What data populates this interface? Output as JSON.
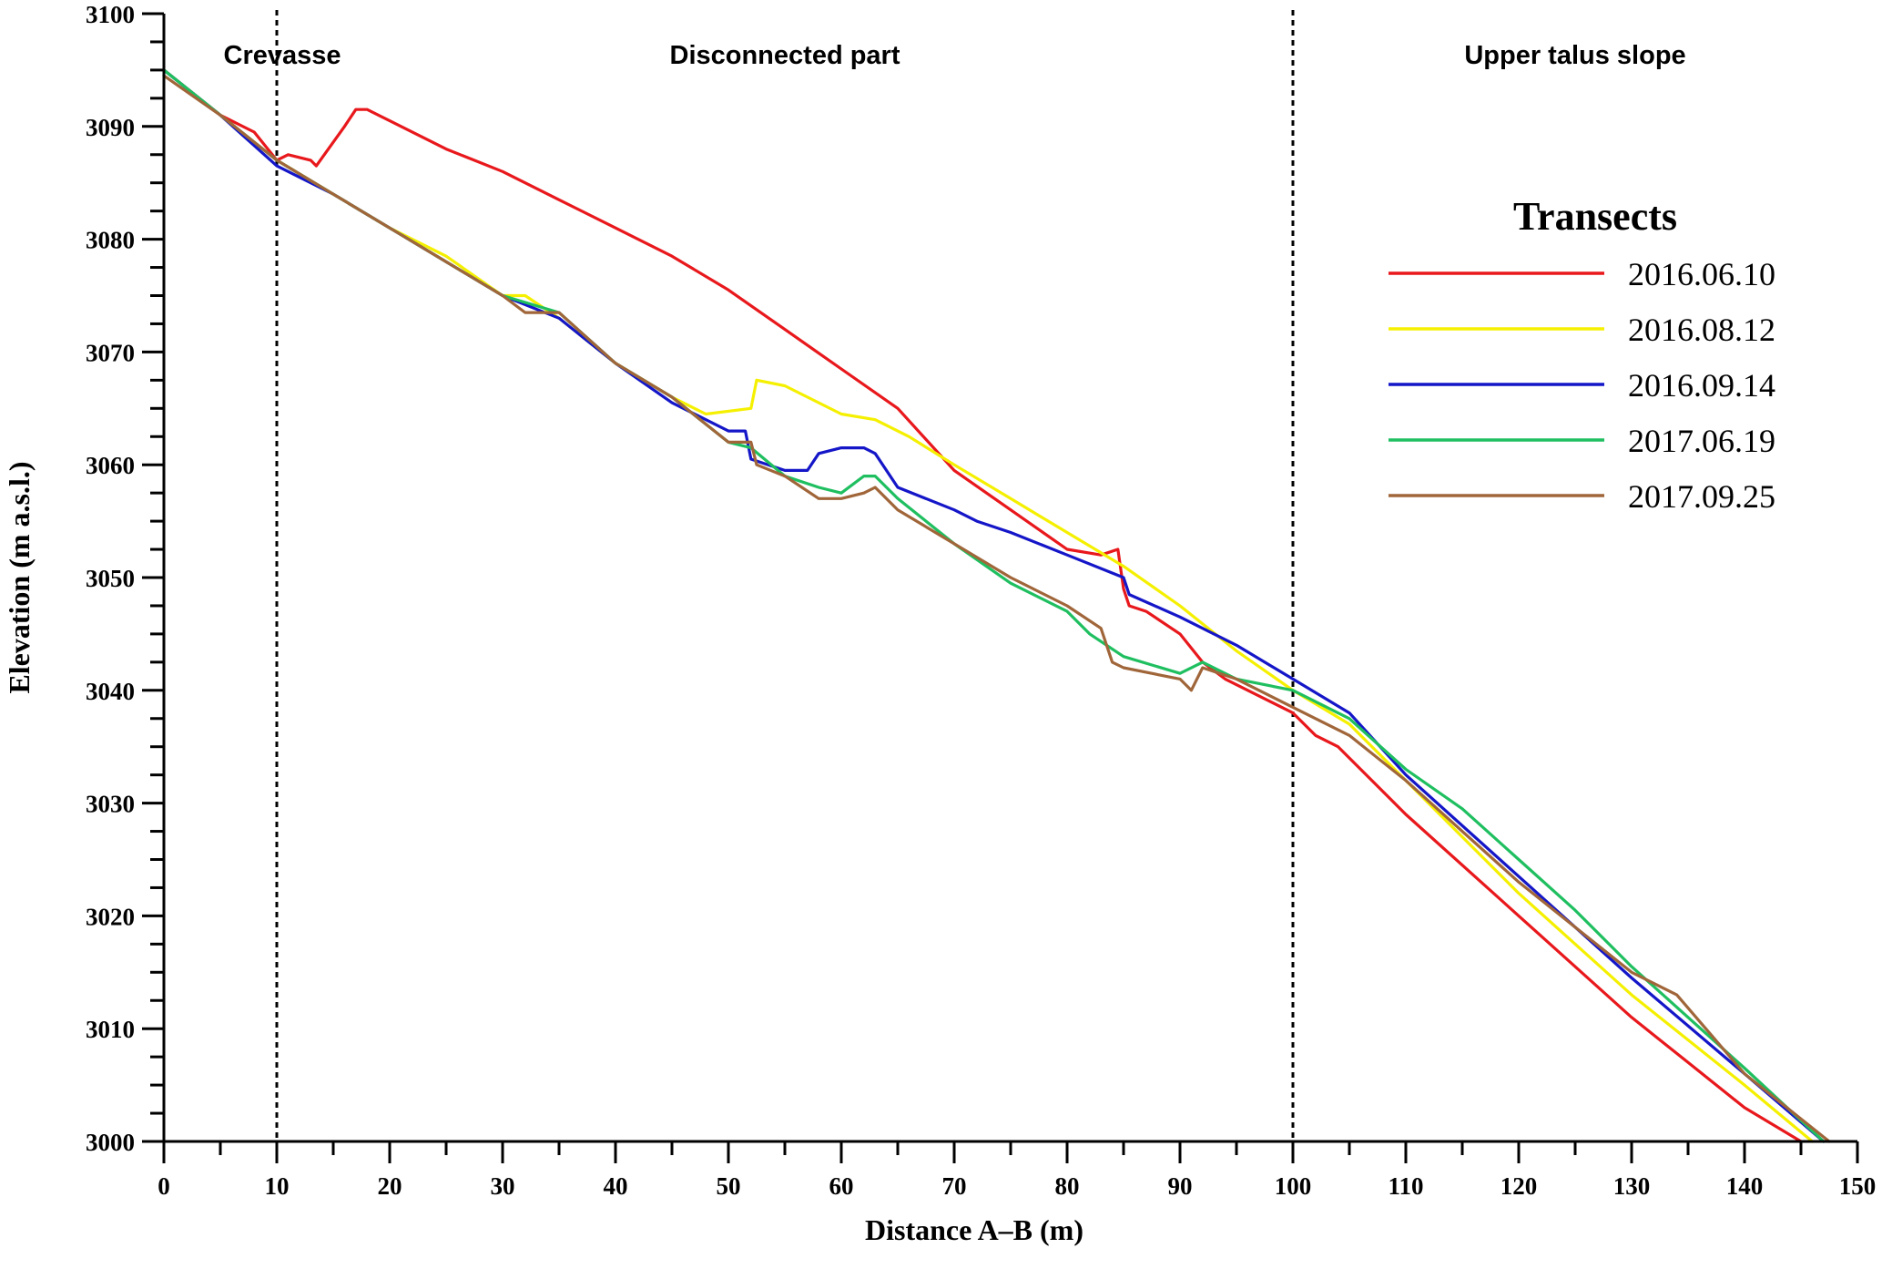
{
  "chart_data": {
    "type": "line",
    "xlabel": "Distance A–B (m)",
    "ylabel": "Elevation (m a.s.l.)",
    "xlim": [
      0,
      150
    ],
    "ylim": [
      3000,
      3100
    ],
    "x_ticks": [
      0,
      10,
      20,
      30,
      40,
      50,
      60,
      70,
      80,
      90,
      100,
      110,
      120,
      130,
      140,
      150
    ],
    "y_ticks": [
      3000,
      3010,
      3020,
      3030,
      3040,
      3050,
      3060,
      3070,
      3080,
      3090,
      3100
    ],
    "x_tick_labels": [
      "0",
      "10",
      "20",
      "30",
      "40",
      "50",
      "60",
      "70",
      "80",
      "90",
      "100",
      "110",
      "120",
      "130",
      "140",
      "150"
    ],
    "y_tick_labels": [
      "3000",
      "3010",
      "3020",
      "3030",
      "3040",
      "3050",
      "3060",
      "3070",
      "3080",
      "3090",
      "3100"
    ],
    "grid": false,
    "legend": {
      "title": "Transects",
      "position": "right"
    },
    "zones": [
      {
        "label": "Crevasse",
        "x": 0
      },
      {
        "label": "Disconnected part",
        "x": 10
      },
      {
        "label": "Upper talus slope",
        "x": 100
      }
    ],
    "dividers": [
      10,
      100
    ],
    "series": [
      {
        "name": "2016.06.10",
        "color": "#e8181c",
        "x": [
          0,
          5,
          8,
          10,
          11,
          13,
          13.5,
          16,
          17,
          18,
          20,
          25,
          30,
          35,
          40,
          45,
          50,
          55,
          60,
          65,
          70,
          75,
          80,
          83,
          84.5,
          85,
          85.5,
          87,
          90,
          92,
          94,
          98,
          100,
          102,
          104,
          110,
          120,
          130,
          135,
          140,
          145
        ],
        "values": [
          3095,
          3091,
          3089.5,
          3087,
          3087.5,
          3087,
          3086.5,
          3090,
          3091.5,
          3091.5,
          3090.5,
          3088,
          3086,
          3083.5,
          3081,
          3078.5,
          3075.5,
          3072,
          3068.5,
          3065,
          3059.5,
          3056,
          3052.5,
          3052,
          3052.5,
          3049,
          3047.5,
          3047,
          3045,
          3042.5,
          3041,
          3039,
          3038,
          3036,
          3035,
          3029,
          3020,
          3011,
          3007,
          3003,
          3000
        ]
      },
      {
        "name": "2016.08.12",
        "color": "#f5f000",
        "x": [
          0,
          5,
          10,
          15,
          20,
          25,
          30,
          32,
          35,
          40,
          45,
          48,
          52,
          52.5,
          55,
          60,
          63,
          66,
          70,
          75,
          80,
          85,
          90,
          95,
          100,
          105,
          110,
          120,
          130,
          140,
          146
        ],
        "values": [
          3095,
          3091,
          3087,
          3084,
          3081,
          3078.5,
          3075,
          3075,
          3073,
          3069,
          3066,
          3064.5,
          3065,
          3067.5,
          3067,
          3064.5,
          3064,
          3062.5,
          3060,
          3057,
          3054,
          3051,
          3047.5,
          3043.5,
          3040,
          3037,
          3032,
          3022,
          3013,
          3005,
          3000
        ]
      },
      {
        "name": "2016.09.14",
        "color": "#1416c8",
        "x": [
          0,
          5,
          10,
          15,
          20,
          25,
          30,
          35,
          40,
          45,
          50,
          51.5,
          52,
          55,
          57,
          58,
          60,
          61,
          62,
          63,
          65,
          70,
          72,
          75,
          80,
          85,
          85.5,
          90,
          95,
          100,
          105,
          110,
          120,
          130,
          140,
          147
        ],
        "values": [
          3095,
          3091,
          3086.5,
          3084,
          3081,
          3078,
          3075,
          3073,
          3069,
          3065.5,
          3063,
          3063,
          3060.5,
          3059.5,
          3059.5,
          3061,
          3061.5,
          3061.5,
          3061.5,
          3061,
          3058,
          3056,
          3055,
          3054,
          3052,
          3050,
          3048.5,
          3046.5,
          3044,
          3041,
          3038,
          3032.5,
          3023.5,
          3014.5,
          3006,
          3000
        ]
      },
      {
        "name": "2017.06.19",
        "color": "#1fbf60",
        "x": [
          0,
          5,
          10,
          15,
          20,
          25,
          30,
          35,
          40,
          45,
          50,
          52,
          55,
          58,
          60,
          62,
          63,
          65,
          70,
          75,
          80,
          82,
          85,
          90,
          92,
          95,
          100,
          105,
          110,
          115,
          120,
          125,
          130,
          140,
          147
        ],
        "values": [
          3095,
          3091,
          3087,
          3084,
          3081,
          3078,
          3075,
          3073.5,
          3069,
          3066,
          3062,
          3061.5,
          3059,
          3058,
          3057.5,
          3059,
          3059,
          3057,
          3053,
          3049.5,
          3047,
          3045,
          3043,
          3041.5,
          3042.5,
          3041,
          3040,
          3037.5,
          3033,
          3029.5,
          3025,
          3020.5,
          3015.5,
          3006.5,
          3000
        ]
      },
      {
        "name": "2017.09.25",
        "color": "#a0663a",
        "x": [
          0,
          5,
          10,
          15,
          20,
          25,
          30,
          32,
          35,
          40,
          45,
          50,
          52,
          52.5,
          55,
          58,
          60,
          62,
          63,
          65,
          70,
          75,
          80,
          83,
          84,
          85,
          90,
          91,
          92,
          95,
          100,
          105,
          110,
          120,
          130,
          134,
          140,
          147.5
        ],
        "values": [
          3094.5,
          3091,
          3087,
          3084,
          3081,
          3078,
          3075,
          3073.5,
          3073.5,
          3069,
          3066,
          3062,
          3062,
          3060,
          3059,
          3057,
          3057,
          3057.5,
          3058,
          3056,
          3053,
          3050,
          3047.5,
          3045.5,
          3042.5,
          3042,
          3041,
          3040,
          3042,
          3041,
          3038.5,
          3036,
          3032,
          3023,
          3015,
          3013,
          3006,
          3000
        ]
      }
    ]
  }
}
